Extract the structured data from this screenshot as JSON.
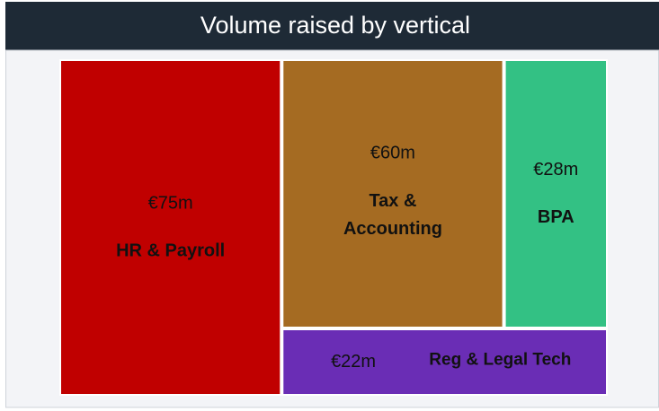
{
  "chart_data": {
    "type": "treemap",
    "title": "Volume raised by vertical",
    "categories": [
      "HR & Payroll",
      "Tax & Accounting",
      "BPA",
      "Reg & Legal Tech"
    ],
    "values": [
      75,
      60,
      28,
      22
    ],
    "value_labels": [
      "€75m",
      "€60m",
      "€28m",
      "€22m"
    ],
    "colors": [
      "#c00000",
      "#a56b22",
      "#33c184",
      "#6a2db5"
    ]
  }
}
